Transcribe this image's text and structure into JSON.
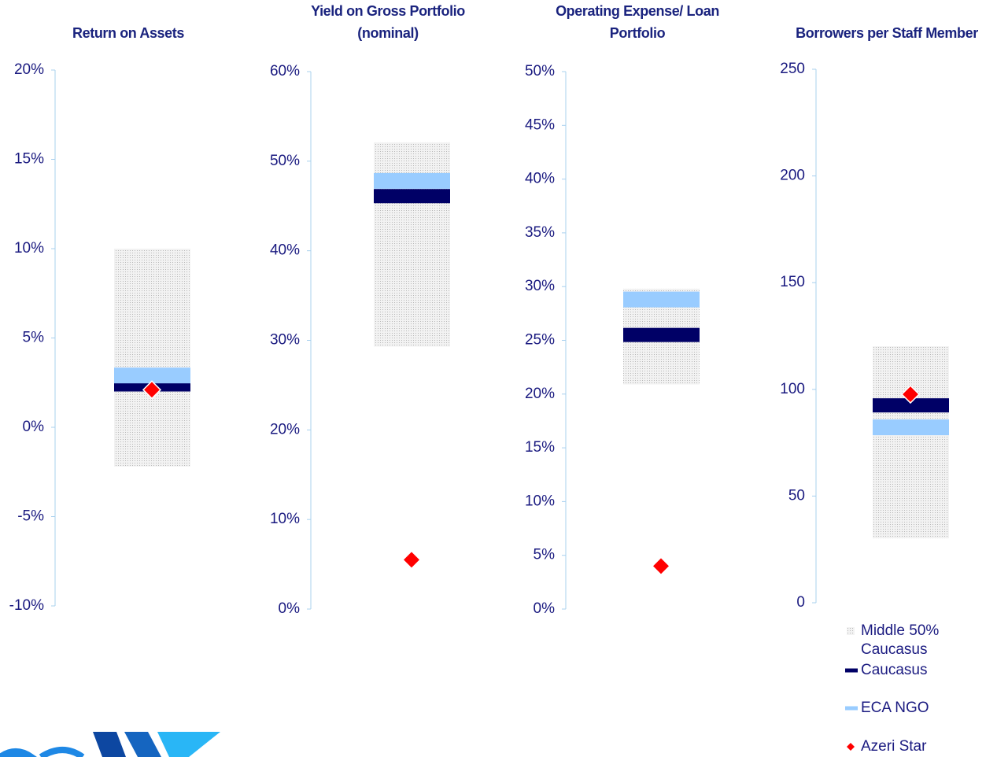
{
  "chart_data": [
    {
      "type": "benchmark",
      "title": "Return on Assets",
      "ylim": [
        -10,
        20
      ],
      "yticks": [
        {
          "value": -10,
          "label": "-10%"
        },
        {
          "value": -5,
          "label": "-5%"
        },
        {
          "value": 0,
          "label": "0%"
        },
        {
          "value": 5,
          "label": "5%"
        },
        {
          "value": 10,
          "label": "10%"
        },
        {
          "value": 15,
          "label": "15%"
        },
        {
          "value": 20,
          "label": "20%"
        }
      ],
      "middle_50": [
        -2.2,
        10
      ],
      "caucasus": 2.4,
      "eca_ngo": 2.9,
      "azeri_star": 2.1
    },
    {
      "type": "benchmark",
      "title": "Yield on Gross Portfolio (nominal)",
      "ylim": [
        0,
        60
      ],
      "yticks": [
        {
          "value": 0,
          "label": "0%"
        },
        {
          "value": 10,
          "label": "10%"
        },
        {
          "value": 20,
          "label": "20%"
        },
        {
          "value": 30,
          "label": "30%"
        },
        {
          "value": 40,
          "label": "40%"
        },
        {
          "value": 50,
          "label": "50%"
        },
        {
          "value": 60,
          "label": "60%"
        }
      ],
      "middle_50": [
        29.3,
        52.1
      ],
      "caucasus": 46.1,
      "eca_ngo": 47.8,
      "azeri_star": 5.5
    },
    {
      "type": "benchmark",
      "title": "Operating Expense/ Loan Portfolio",
      "ylim": [
        0,
        50
      ],
      "yticks": [
        {
          "value": 0,
          "label": "0%"
        },
        {
          "value": 5,
          "label": "5%"
        },
        {
          "value": 10,
          "label": "10%"
        },
        {
          "value": 15,
          "label": "15%"
        },
        {
          "value": 20,
          "label": "20%"
        },
        {
          "value": 25,
          "label": "25%"
        },
        {
          "value": 30,
          "label": "30%"
        },
        {
          "value": 35,
          "label": "35%"
        },
        {
          "value": 40,
          "label": "40%"
        },
        {
          "value": 45,
          "label": "45%"
        },
        {
          "value": 50,
          "label": "50%"
        }
      ],
      "middle_50": [
        20.9,
        29.8
      ],
      "caucasus": 25.5,
      "eca_ngo": 28.8,
      "azeri_star": 4.0
    },
    {
      "type": "benchmark",
      "title": "Borrowers per Staff Member",
      "ylim": [
        0,
        250
      ],
      "yticks": [
        0,
        50,
        100,
        150,
        200,
        250
      ],
      "middle_50": [
        30.2,
        120.2
      ],
      "caucasus": 92.5,
      "eca_ngo": 82.2,
      "azeri_star": 97.7
    }
  ],
  "legend": [
    {
      "key": "middle_50",
      "name": "Middle 50% Caucasus",
      "color": "#d9d9d9"
    },
    {
      "key": "caucasus",
      "name": "Caucasus",
      "color": "#000066"
    },
    {
      "key": "eca_ngo",
      "name": "ECA NGO",
      "color": "#99ccff"
    },
    {
      "key": "azeri_star",
      "name": "Azeri Star",
      "color": "#ff0000"
    }
  ]
}
